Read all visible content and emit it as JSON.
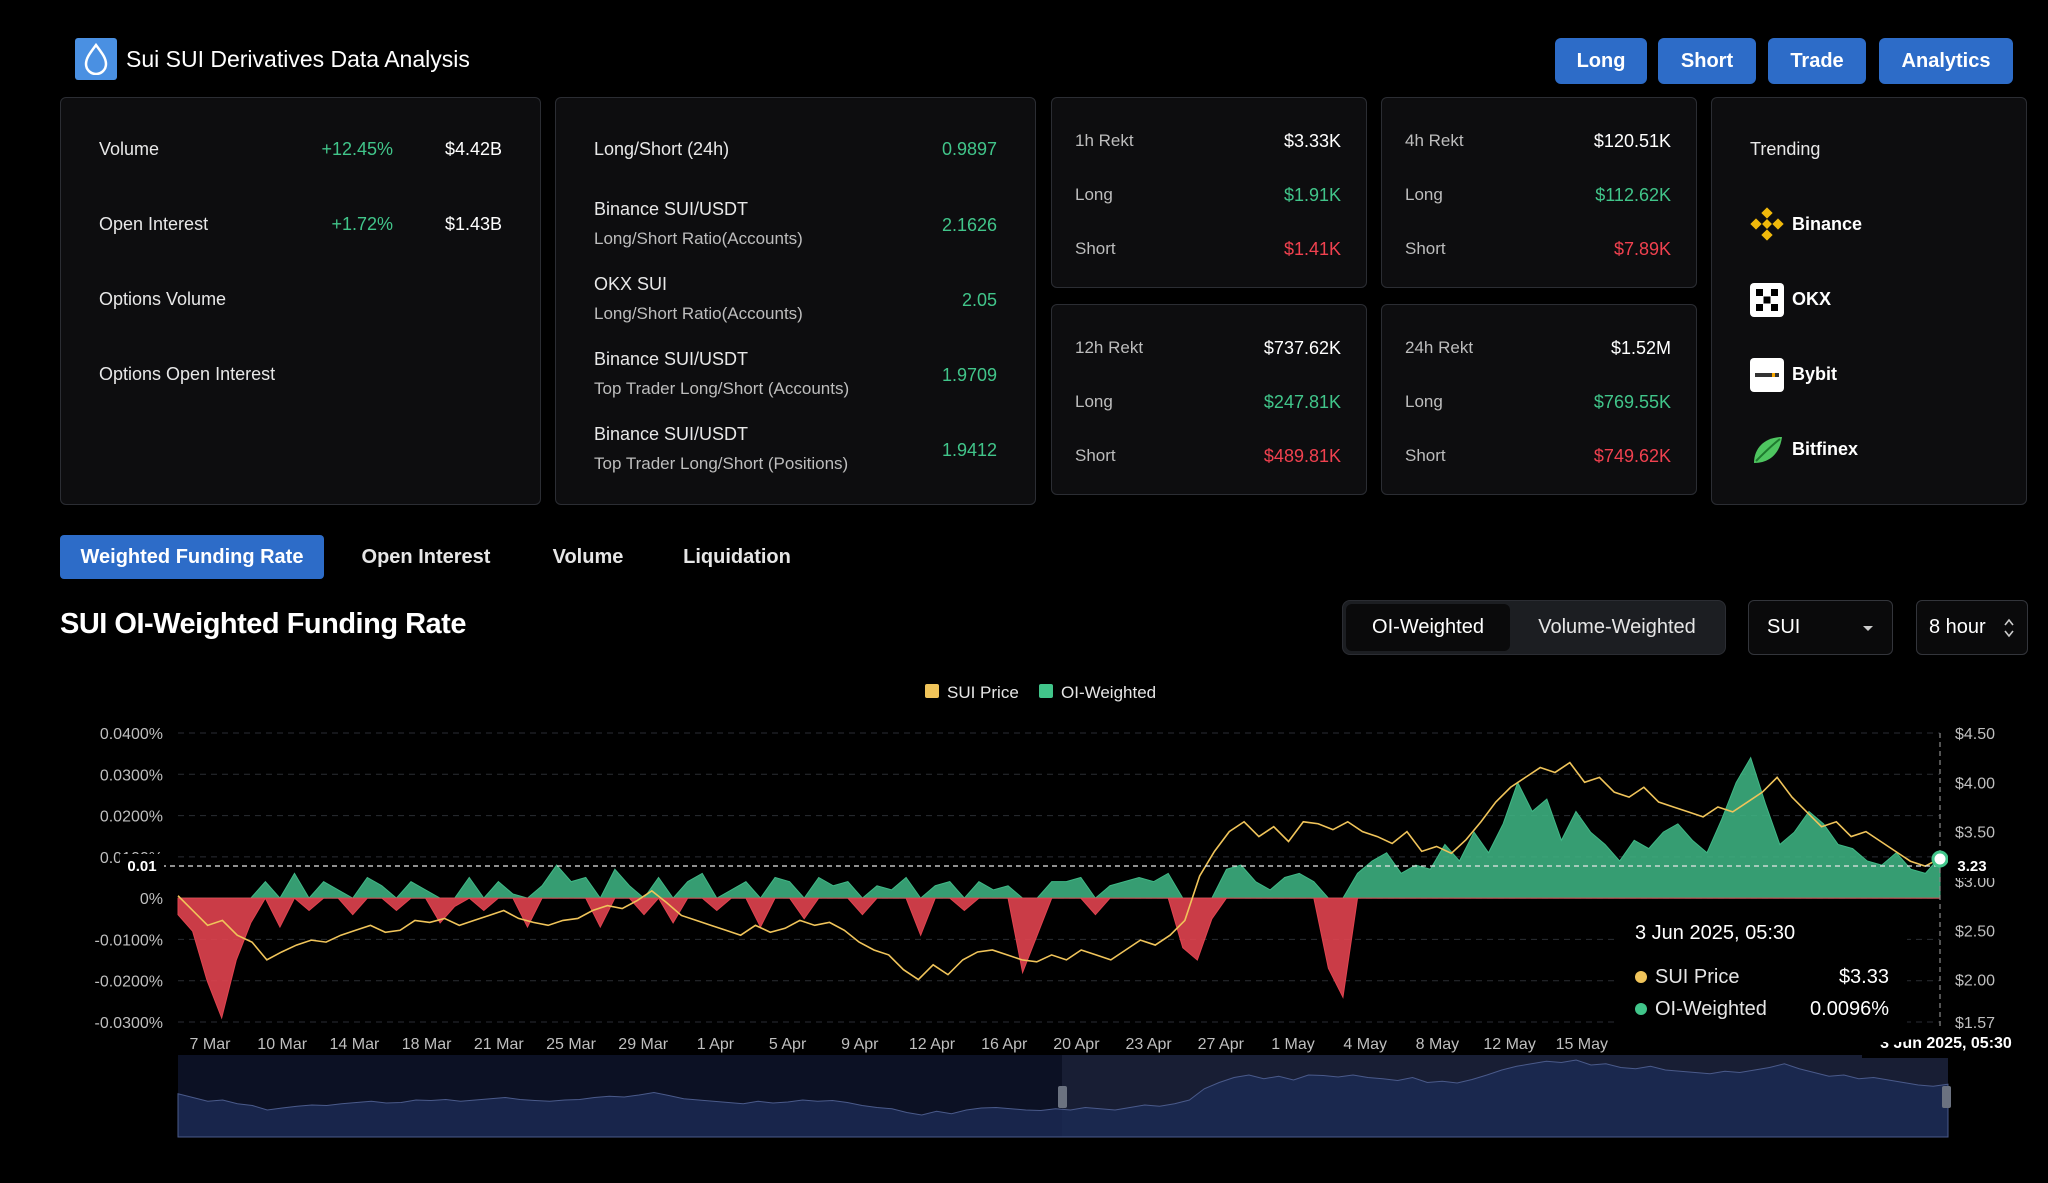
{
  "header": {
    "title": "Sui SUI Derivatives Data Analysis",
    "buttons": [
      "Long",
      "Short",
      "Trade",
      "Analytics"
    ]
  },
  "stats": {
    "rows": [
      {
        "label": "Volume",
        "change": "+12.45%",
        "value": "$4.42B"
      },
      {
        "label": "Open Interest",
        "change": "+1.72%",
        "value": "$1.43B"
      },
      {
        "label": "Options Volume",
        "change": "",
        "value": ""
      },
      {
        "label": "Options Open Interest",
        "change": "",
        "value": ""
      }
    ]
  },
  "ratios": [
    {
      "title": "Long/Short (24h)",
      "subtitle": "",
      "value": "0.9897"
    },
    {
      "title": "Binance SUI/USDT",
      "subtitle": "Long/Short Ratio(Accounts)",
      "value": "2.1626"
    },
    {
      "title": "OKX SUI",
      "subtitle": "Long/Short Ratio(Accounts)",
      "value": "2.05"
    },
    {
      "title": "Binance SUI/USDT",
      "subtitle": "Top Trader Long/Short (Accounts)",
      "value": "1.9709"
    },
    {
      "title": "Binance SUI/USDT",
      "subtitle": "Top Trader Long/Short (Positions)",
      "value": "1.9412"
    }
  ],
  "rekt": [
    {
      "label": "1h Rekt",
      "total": "$3.33K",
      "long_label": "Long",
      "long": "$1.91K",
      "short_label": "Short",
      "short": "$1.41K"
    },
    {
      "label": "4h Rekt",
      "total": "$120.51K",
      "long_label": "Long",
      "long": "$112.62K",
      "short_label": "Short",
      "short": "$7.89K"
    },
    {
      "label": "12h Rekt",
      "total": "$737.62K",
      "long_label": "Long",
      "long": "$247.81K",
      "short_label": "Short",
      "short": "$489.81K"
    },
    {
      "label": "24h Rekt",
      "total": "$1.52M",
      "long_label": "Long",
      "long": "$769.55K",
      "short_label": "Short",
      "short": "$749.62K"
    }
  ],
  "trending": {
    "title": "Trending",
    "items": [
      "Binance",
      "OKX",
      "Bybit",
      "Bitfinex"
    ]
  },
  "tabs": [
    "Weighted Funding Rate",
    "Open Interest",
    "Volume",
    "Liquidation"
  ],
  "chart_title": "SUI OI-Weighted Funding Rate",
  "weighting": {
    "options": [
      "OI-Weighted",
      "Volume-Weighted"
    ],
    "selected": "OI-Weighted"
  },
  "coin_select": "SUI",
  "interval_select": "8 hour",
  "colors": {
    "accent": "#2d6cc8",
    "positive": "#41c58a",
    "negative": "#f0414f",
    "price": "#f0c45a"
  },
  "tooltip": {
    "date": "3 Jun 2025, 05:30",
    "rows": [
      {
        "name": "SUI Price",
        "value": "$3.33"
      },
      {
        "name": "OI-Weighted",
        "value": "0.0096%"
      }
    ]
  },
  "crosshair": {
    "y_label": "0.01",
    "price_label": "3.23",
    "x_label": "3 Jun 2025, 05:30"
  },
  "chart_data": {
    "type": "area",
    "legend": [
      "SUI Price",
      "OI-Weighted"
    ],
    "legend_position": "top-center",
    "x_ticks": [
      "7 Mar",
      "10 Mar",
      "14 Mar",
      "18 Mar",
      "21 Mar",
      "25 Mar",
      "29 Mar",
      "1 Apr",
      "5 Apr",
      "9 Apr",
      "12 Apr",
      "16 Apr",
      "20 Apr",
      "23 Apr",
      "27 Apr",
      "1 May",
      "4 May",
      "8 May",
      "12 May",
      "15 May"
    ],
    "y_left_ticks": [
      "0.0400%",
      "0.0300%",
      "0.0200%",
      "0.0100%",
      "0%",
      "-0.0100%",
      "-0.0200%",
      "-0.0300%"
    ],
    "y_right_ticks": [
      "$4.50",
      "$4.00",
      "$3.50",
      "$3.00",
      "$2.50",
      "$2.00",
      "$1.57"
    ],
    "y_left_range": [
      -0.03,
      0.04
    ],
    "y_right_range": [
      1.57,
      4.5
    ],
    "grid": true,
    "series": [
      {
        "name": "OI-Weighted",
        "axis": "left",
        "values": [
          -0.004,
          -0.008,
          -0.02,
          -0.029,
          -0.015,
          -0.006,
          0.004,
          -0.007,
          0.006,
          -0.003,
          0.004,
          0.002,
          -0.004,
          0.005,
          0.003,
          -0.003,
          0.004,
          0.002,
          -0.006,
          -0.002,
          0.005,
          -0.003,
          0.004,
          0.001,
          -0.007,
          0.003,
          0.008,
          0.004,
          0.005,
          -0.007,
          0.007,
          0.003,
          -0.004,
          0.005,
          -0.006,
          0.004,
          0.006,
          -0.003,
          0.002,
          0.004,
          -0.007,
          0.005,
          0.004,
          -0.005,
          0.005,
          0.003,
          0.004,
          -0.004,
          0.003,
          0.002,
          0.005,
          -0.009,
          0.003,
          0.004,
          -0.003,
          0.004,
          0.002,
          0.003,
          -0.018,
          -0.009,
          0.004,
          0.004,
          0.005,
          -0.004,
          0.003,
          0.004,
          0.005,
          0.004,
          0.006,
          -0.012,
          -0.015,
          -0.005,
          0.007,
          0.008,
          0.004,
          0.002,
          0.005,
          0.006,
          0.004,
          -0.017,
          -0.024,
          0.006,
          0.009,
          0.011,
          0.006,
          0.008,
          0.007,
          0.013,
          0.009,
          0.016,
          0.011,
          0.018,
          0.028,
          0.021,
          0.024,
          0.014,
          0.021,
          0.016,
          0.013,
          0.009,
          0.014,
          0.012,
          0.016,
          0.018,
          0.014,
          0.011,
          0.019,
          0.028,
          0.034,
          0.023,
          0.013,
          0.016,
          0.021,
          0.018,
          0.013,
          0.012,
          0.009,
          0.008,
          0.011,
          0.007,
          0.006,
          0.01
        ]
      },
      {
        "name": "SUI Price",
        "axis": "right",
        "values": [
          2.85,
          2.7,
          2.55,
          2.6,
          2.45,
          2.38,
          2.2,
          2.28,
          2.35,
          2.4,
          2.38,
          2.45,
          2.5,
          2.55,
          2.48,
          2.5,
          2.6,
          2.58,
          2.62,
          2.55,
          2.6,
          2.65,
          2.7,
          2.62,
          2.58,
          2.55,
          2.6,
          2.62,
          2.7,
          2.75,
          2.72,
          2.8,
          2.9,
          2.78,
          2.65,
          2.6,
          2.55,
          2.5,
          2.45,
          2.55,
          2.48,
          2.52,
          2.6,
          2.55,
          2.58,
          2.5,
          2.38,
          2.3,
          2.25,
          2.1,
          2.0,
          2.15,
          2.05,
          2.2,
          2.28,
          2.3,
          2.25,
          2.2,
          2.18,
          2.25,
          2.2,
          2.3,
          2.25,
          2.2,
          2.3,
          2.4,
          2.35,
          2.45,
          2.6,
          3.05,
          3.3,
          3.5,
          3.6,
          3.45,
          3.55,
          3.4,
          3.6,
          3.58,
          3.52,
          3.6,
          3.5,
          3.45,
          3.38,
          3.5,
          3.3,
          3.35,
          3.28,
          3.42,
          3.6,
          3.8,
          3.95,
          4.05,
          4.15,
          4.1,
          4.2,
          4.0,
          4.05,
          3.9,
          3.85,
          3.95,
          3.8,
          3.75,
          3.7,
          3.65,
          3.75,
          3.7,
          3.8,
          3.9,
          4.05,
          3.85,
          3.7,
          3.55,
          3.6,
          3.45,
          3.5,
          3.4,
          3.3,
          3.2,
          3.15,
          3.23
        ]
      }
    ]
  }
}
